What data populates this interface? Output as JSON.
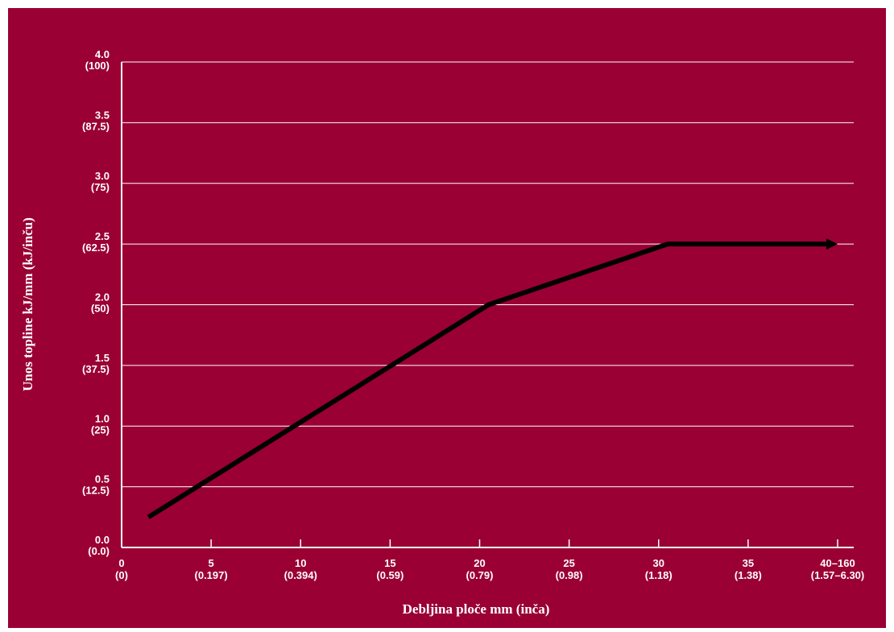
{
  "chart_data": {
    "type": "line",
    "xlabel": "Debljina ploče mm (inča)",
    "ylabel": "Unos topline kJ/mm (kJ/inču)",
    "ylim": [
      0,
      4.0
    ],
    "xlim": [
      0,
      40
    ],
    "grid": {
      "horizontal": true,
      "vertical": false
    },
    "y_ticks": [
      {
        "value": 0.0,
        "label": "0.0",
        "sub": "(0.0)"
      },
      {
        "value": 0.5,
        "label": "0.5",
        "sub": "(12.5)"
      },
      {
        "value": 1.0,
        "label": "1.0",
        "sub": "(25)"
      },
      {
        "value": 1.5,
        "label": "1.5",
        "sub": "(37.5)"
      },
      {
        "value": 2.0,
        "label": "2.0",
        "sub": "(50)"
      },
      {
        "value": 2.5,
        "label": "2.5",
        "sub": "(62.5)"
      },
      {
        "value": 3.0,
        "label": "3.0",
        "sub": "(75)"
      },
      {
        "value": 3.5,
        "label": "3.5",
        "sub": "(87.5)"
      },
      {
        "value": 4.0,
        "label": "4.0",
        "sub": "(100)"
      }
    ],
    "x_ticks": [
      {
        "value": 0,
        "label": "0",
        "sub": "(0)"
      },
      {
        "value": 5,
        "label": "5",
        "sub": "(0.197)"
      },
      {
        "value": 10,
        "label": "10",
        "sub": "(0.394)"
      },
      {
        "value": 15,
        "label": "15",
        "sub": "(0.59)"
      },
      {
        "value": 20,
        "label": "20",
        "sub": "(0.79)"
      },
      {
        "value": 25,
        "label": "25",
        "sub": "(0.98)"
      },
      {
        "value": 30,
        "label": "30",
        "sub": "(1.18)"
      },
      {
        "value": 35,
        "label": "35",
        "sub": "(1.38)"
      },
      {
        "value": 40,
        "label": "40–160",
        "sub": "(1.57–6.30)"
      }
    ],
    "series": [
      {
        "points": [
          {
            "x": 1.5,
            "y": 0.25
          },
          {
            "x": 20.5,
            "y": 2.0
          },
          {
            "x": 30.5,
            "y": 2.5
          },
          {
            "x": 40,
            "y": 2.5
          }
        ],
        "end_arrow": true
      }
    ],
    "colors": {
      "background": "#9a0034",
      "line": "#000000",
      "grid": "#ffffff",
      "text": "#ffffff"
    }
  }
}
